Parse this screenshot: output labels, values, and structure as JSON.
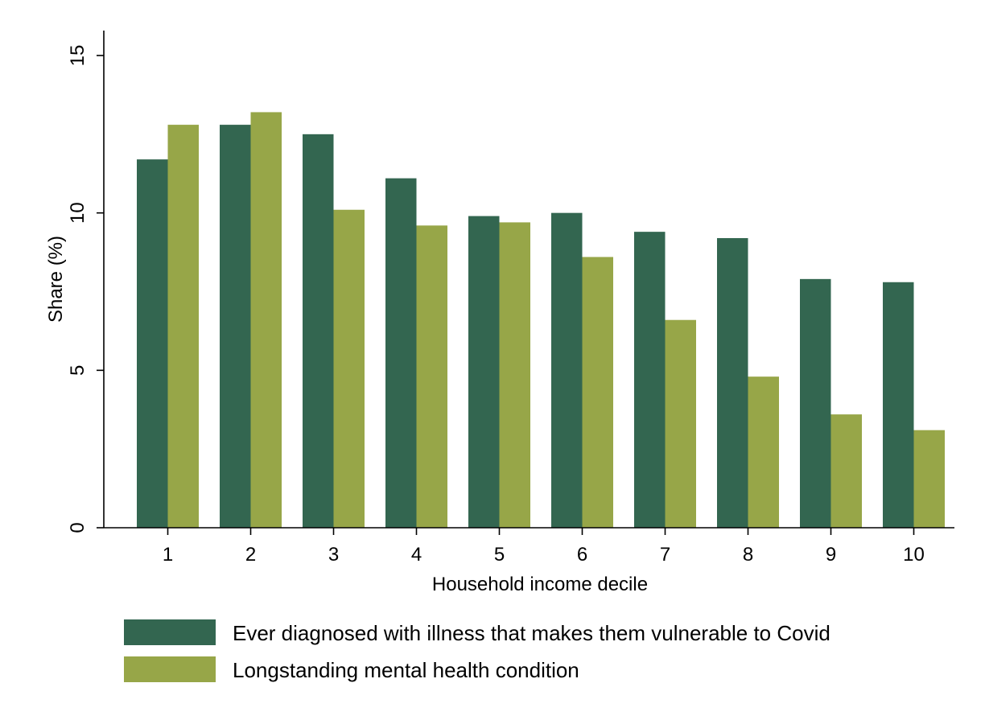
{
  "chart_data": {
    "type": "bar",
    "xlabel": "Household income decile",
    "ylabel": "Share (%)",
    "ylim": [
      0,
      15
    ],
    "yticks": [
      0,
      5,
      10,
      15
    ],
    "categories": [
      "1",
      "2",
      "3",
      "4",
      "5",
      "6",
      "7",
      "8",
      "9",
      "10"
    ],
    "series": [
      {
        "name": "Ever diagnosed with illness that makes them vulnerable to Covid",
        "color": "#336650",
        "values": [
          11.7,
          12.8,
          12.5,
          11.1,
          9.9,
          10.0,
          9.4,
          9.2,
          7.9,
          7.8
        ]
      },
      {
        "name": "Longstanding mental health condition",
        "color": "#97a648",
        "values": [
          12.8,
          13.2,
          10.1,
          9.6,
          9.7,
          8.6,
          6.6,
          4.8,
          3.6,
          3.1
        ]
      }
    ],
    "grid": false,
    "legend_position": "bottom"
  }
}
